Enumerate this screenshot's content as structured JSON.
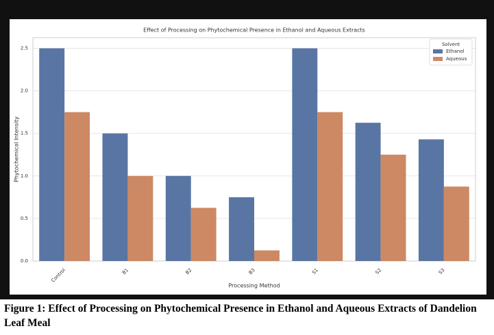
{
  "chart_data": {
    "type": "bar",
    "title": "Effect of Processing on Phytochemical Presence in Ethanol and Aqueous Extracts",
    "x_label": "Processing Method",
    "y_label": "Phytochemical Intensity",
    "categories": [
      "Control",
      "B1",
      "B2",
      "B3",
      "S1",
      "S2",
      "S3"
    ],
    "series": [
      {
        "name": "Ethanol",
        "color": "#5975a4",
        "values": [
          2.5,
          1.5,
          1.0,
          0.75,
          2.5,
          1.625,
          1.43
        ]
      },
      {
        "name": "Aqueous",
        "color": "#cc8963",
        "values": [
          1.75,
          1.0,
          0.625,
          0.125,
          1.75,
          1.25,
          0.875
        ]
      }
    ],
    "legend_title": "Solvent",
    "legend": "upper right",
    "ylim": [
      0,
      2.625
    ],
    "yticks": [
      {
        "value": 0,
        "label": "0.0"
      },
      0.5,
      {
        "value": 1,
        "label": "1.0"
      },
      1.5,
      {
        "value": 2,
        "label": "2.0"
      },
      2.5
    ],
    "grid": true
  },
  "caption": "Figure 1: Effect of Processing on Phytochemical Presence in Ethanol and Aqueous Extracts of Dandelion Leaf Meal"
}
